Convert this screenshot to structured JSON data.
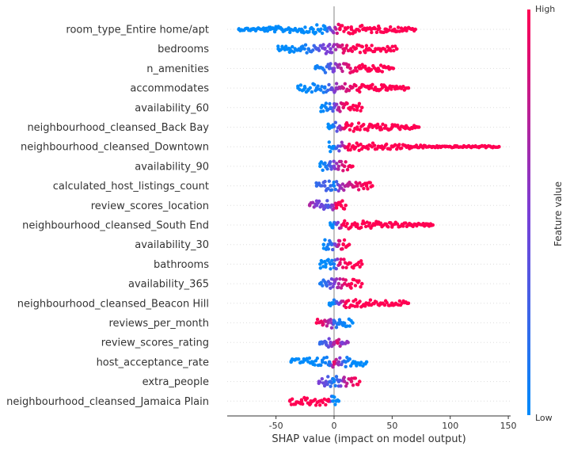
{
  "chart_data": {
    "type": "scatter",
    "subtype": "shap-beeswarm",
    "xlabel": "SHAP value (impact on model output)",
    "xlim": [
      -92,
      152
    ],
    "xticks": [
      -50,
      0,
      50,
      100,
      150
    ],
    "colorbar": {
      "title": "Feature value",
      "high_label": "High",
      "low_label": "Low",
      "low_color": "#008bfb",
      "high_color": "#ff0052"
    },
    "zero_line_color": "#999999",
    "features": [
      {
        "name": "room_type_Entire home/apt",
        "min": -82,
        "max": 70,
        "points": [
          {
            "x": -82,
            "c": 0.0
          },
          {
            "x": -70,
            "c": 0.0
          },
          {
            "x": -62,
            "c": 0.0
          },
          {
            "x": -55,
            "c": 0.0
          },
          {
            "x": -50,
            "c": 0.0
          },
          {
            "x": -45,
            "c": 0.0
          },
          {
            "x": -38,
            "c": 0.0
          },
          {
            "x": -28,
            "c": 0.0
          },
          {
            "x": -18,
            "c": 0.0
          },
          {
            "x": -8,
            "c": 0.0
          },
          {
            "x": 5,
            "c": 1.0
          },
          {
            "x": 15,
            "c": 1.0
          },
          {
            "x": 25,
            "c": 1.0
          },
          {
            "x": 32,
            "c": 1.0
          },
          {
            "x": 38,
            "c": 1.0
          },
          {
            "x": 45,
            "c": 1.0
          },
          {
            "x": 52,
            "c": 1.0
          },
          {
            "x": 60,
            "c": 1.0
          },
          {
            "x": 70,
            "c": 1.0
          }
        ]
      },
      {
        "name": "bedrooms",
        "min": -48,
        "max": 54,
        "points": [
          {
            "x": -48,
            "c": 0.0
          },
          {
            "x": -38,
            "c": 0.0
          },
          {
            "x": -28,
            "c": 0.05
          },
          {
            "x": -22,
            "c": 0.1
          },
          {
            "x": -15,
            "c": 0.3
          },
          {
            "x": -8,
            "c": 0.5
          },
          {
            "x": -3,
            "c": 0.5
          },
          {
            "x": 8,
            "c": 0.9
          },
          {
            "x": 18,
            "c": 1.0
          },
          {
            "x": 28,
            "c": 1.0
          },
          {
            "x": 38,
            "c": 1.0
          },
          {
            "x": 48,
            "c": 1.0
          },
          {
            "x": 54,
            "c": 1.0
          }
        ]
      },
      {
        "name": "n_amenities",
        "min": -16,
        "max": 51,
        "points": [
          {
            "x": -16,
            "c": 0.05
          },
          {
            "x": -10,
            "c": 0.1
          },
          {
            "x": -4,
            "c": 0.3
          },
          {
            "x": 0,
            "c": 0.5
          },
          {
            "x": 6,
            "c": 0.75
          },
          {
            "x": 14,
            "c": 0.9
          },
          {
            "x": 22,
            "c": 1.0
          },
          {
            "x": 30,
            "c": 1.0
          },
          {
            "x": 38,
            "c": 1.0
          },
          {
            "x": 51,
            "c": 1.0
          }
        ]
      },
      {
        "name": "accommodates",
        "min": -31,
        "max": 64,
        "points": [
          {
            "x": -31,
            "c": 0.0
          },
          {
            "x": -25,
            "c": 0.0
          },
          {
            "x": -15,
            "c": 0.05
          },
          {
            "x": -8,
            "c": 0.1
          },
          {
            "x": -2,
            "c": 0.4
          },
          {
            "x": 2,
            "c": 0.6
          },
          {
            "x": 8,
            "c": 0.8
          },
          {
            "x": 15,
            "c": 0.9
          },
          {
            "x": 22,
            "c": 1.0
          },
          {
            "x": 30,
            "c": 1.0
          },
          {
            "x": 45,
            "c": 1.0
          },
          {
            "x": 57,
            "c": 1.0
          },
          {
            "x": 64,
            "c": 1.0
          }
        ]
      },
      {
        "name": "availability_60",
        "min": -11,
        "max": 24,
        "points": [
          {
            "x": -11,
            "c": 0.0
          },
          {
            "x": -7,
            "c": 0.05
          },
          {
            "x": -3,
            "c": 0.15
          },
          {
            "x": 0,
            "c": 0.4
          },
          {
            "x": 4,
            "c": 0.75
          },
          {
            "x": 8,
            "c": 0.9
          },
          {
            "x": 14,
            "c": 1.0
          },
          {
            "x": 20,
            "c": 1.0
          },
          {
            "x": 24,
            "c": 1.0
          }
        ]
      },
      {
        "name": "neighbourhood_cleansed_Back Bay",
        "min": -5,
        "max": 73,
        "points": [
          {
            "x": -5,
            "c": 0.0
          },
          {
            "x": -2,
            "c": 0.0
          },
          {
            "x": 10,
            "c": 1.0
          },
          {
            "x": 20,
            "c": 1.0
          },
          {
            "x": 30,
            "c": 1.0
          },
          {
            "x": 40,
            "c": 1.0
          },
          {
            "x": 50,
            "c": 1.0
          },
          {
            "x": 60,
            "c": 1.0
          },
          {
            "x": 73,
            "c": 1.0
          }
        ]
      },
      {
        "name": "neighbourhood_cleansed_Downtown",
        "min": -4,
        "max": 142,
        "points": [
          {
            "x": -4,
            "c": 0.0
          },
          {
            "x": -1,
            "c": 0.0
          },
          {
            "x": 12,
            "c": 1.0
          },
          {
            "x": 25,
            "c": 1.0
          },
          {
            "x": 40,
            "c": 1.0
          },
          {
            "x": 55,
            "c": 1.0
          },
          {
            "x": 70,
            "c": 1.0
          },
          {
            "x": 85,
            "c": 1.0
          },
          {
            "x": 105,
            "c": 1.0
          },
          {
            "x": 125,
            "c": 1.0
          },
          {
            "x": 142,
            "c": 1.0
          }
        ]
      },
      {
        "name": "availability_90",
        "min": -12,
        "max": 16,
        "points": [
          {
            "x": -12,
            "c": 0.0
          },
          {
            "x": -7,
            "c": 0.1
          },
          {
            "x": -3,
            "c": 0.3
          },
          {
            "x": 0,
            "c": 0.5
          },
          {
            "x": 4,
            "c": 0.7
          },
          {
            "x": 9,
            "c": 0.9
          },
          {
            "x": 16,
            "c": 1.0
          }
        ]
      },
      {
        "name": "calculated_host_listings_count",
        "min": -15,
        "max": 33,
        "points": [
          {
            "x": -15,
            "c": 0.2
          },
          {
            "x": -8,
            "c": 0.3
          },
          {
            "x": -3,
            "c": 0.2
          },
          {
            "x": 0,
            "c": 0.05
          },
          {
            "x": 5,
            "c": 0.6
          },
          {
            "x": 12,
            "c": 0.75
          },
          {
            "x": 20,
            "c": 0.9
          },
          {
            "x": 28,
            "c": 1.0
          },
          {
            "x": 33,
            "c": 1.0
          }
        ]
      },
      {
        "name": "review_scores_location",
        "min": -21,
        "max": 10,
        "points": [
          {
            "x": -21,
            "c": 0.7
          },
          {
            "x": -15,
            "c": 0.5
          },
          {
            "x": -10,
            "c": 0.45
          },
          {
            "x": -5,
            "c": 0.3
          },
          {
            "x": -1,
            "c": 0.6
          },
          {
            "x": 2,
            "c": 1.0
          },
          {
            "x": 6,
            "c": 1.0
          },
          {
            "x": 10,
            "c": 1.0
          }
        ]
      },
      {
        "name": "neighbourhood_cleansed_South End",
        "min": -3,
        "max": 85,
        "points": [
          {
            "x": -3,
            "c": 0.0
          },
          {
            "x": -1,
            "c": 0.0
          },
          {
            "x": 8,
            "c": 1.0
          },
          {
            "x": 20,
            "c": 1.0
          },
          {
            "x": 35,
            "c": 1.0
          },
          {
            "x": 50,
            "c": 1.0
          },
          {
            "x": 65,
            "c": 1.0
          },
          {
            "x": 80,
            "c": 1.0
          },
          {
            "x": 85,
            "c": 1.0
          }
        ]
      },
      {
        "name": "availability_30",
        "min": -9,
        "max": 13,
        "points": [
          {
            "x": -9,
            "c": 0.0
          },
          {
            "x": -5,
            "c": 0.1
          },
          {
            "x": -2,
            "c": 0.2
          },
          {
            "x": 1,
            "c": 0.5
          },
          {
            "x": 4,
            "c": 0.8
          },
          {
            "x": 8,
            "c": 1.0
          },
          {
            "x": 13,
            "c": 1.0
          }
        ]
      },
      {
        "name": "bathrooms",
        "min": -12,
        "max": 24,
        "points": [
          {
            "x": -12,
            "c": 0.0
          },
          {
            "x": -7,
            "c": 0.0
          },
          {
            "x": -3,
            "c": 0.05
          },
          {
            "x": 0,
            "c": 0.1
          },
          {
            "x": 5,
            "c": 0.9
          },
          {
            "x": 12,
            "c": 1.0
          },
          {
            "x": 20,
            "c": 1.0
          },
          {
            "x": 24,
            "c": 1.0
          }
        ]
      },
      {
        "name": "availability_365",
        "min": -12,
        "max": 24,
        "points": [
          {
            "x": -12,
            "c": 0.1
          },
          {
            "x": -7,
            "c": 0.2
          },
          {
            "x": -3,
            "c": 0.4
          },
          {
            "x": 0,
            "c": 0.5
          },
          {
            "x": 4,
            "c": 0.7
          },
          {
            "x": 9,
            "c": 0.9
          },
          {
            "x": 15,
            "c": 1.0
          },
          {
            "x": 24,
            "c": 1.0
          }
        ]
      },
      {
        "name": "neighbourhood_cleansed_Beacon Hill",
        "min": -4,
        "max": 64,
        "points": [
          {
            "x": -4,
            "c": 0.0
          },
          {
            "x": -1,
            "c": 0.0
          },
          {
            "x": 10,
            "c": 1.0
          },
          {
            "x": 20,
            "c": 1.0
          },
          {
            "x": 30,
            "c": 1.0
          },
          {
            "x": 40,
            "c": 1.0
          },
          {
            "x": 50,
            "c": 1.0
          },
          {
            "x": 64,
            "c": 1.0
          }
        ]
      },
      {
        "name": "reviews_per_month",
        "min": -15,
        "max": 16,
        "points": [
          {
            "x": -15,
            "c": 1.0
          },
          {
            "x": -10,
            "c": 0.9
          },
          {
            "x": -5,
            "c": 0.7
          },
          {
            "x": -2,
            "c": 0.6
          },
          {
            "x": 0,
            "c": 0.2
          },
          {
            "x": 4,
            "c": 0.1
          },
          {
            "x": 8,
            "c": 0.05
          },
          {
            "x": 16,
            "c": 0.0
          }
        ]
      },
      {
        "name": "review_scores_rating",
        "min": -12,
        "max": 12,
        "points": [
          {
            "x": -12,
            "c": 0.2
          },
          {
            "x": -7,
            "c": 0.3
          },
          {
            "x": -3,
            "c": 0.5
          },
          {
            "x": 0,
            "c": 0.7
          },
          {
            "x": 3,
            "c": 0.9
          },
          {
            "x": 7,
            "c": 0.5
          },
          {
            "x": 12,
            "c": 0.6
          }
        ]
      },
      {
        "name": "host_acceptance_rate",
        "min": -37,
        "max": 28,
        "points": [
          {
            "x": -37,
            "c": 0.0
          },
          {
            "x": -28,
            "c": 0.0
          },
          {
            "x": -18,
            "c": 0.0
          },
          {
            "x": -10,
            "c": 0.05
          },
          {
            "x": -4,
            "c": 0.1
          },
          {
            "x": 0,
            "c": 0.9
          },
          {
            "x": 4,
            "c": 0.6
          },
          {
            "x": 10,
            "c": 0.1
          },
          {
            "x": 18,
            "c": 0.0
          },
          {
            "x": 28,
            "c": 0.0
          }
        ]
      },
      {
        "name": "extra_people",
        "min": -13,
        "max": 22,
        "points": [
          {
            "x": -13,
            "c": 0.5
          },
          {
            "x": -7,
            "c": 0.4
          },
          {
            "x": -3,
            "c": 0.2
          },
          {
            "x": 0,
            "c": 0.05
          },
          {
            "x": 4,
            "c": 0.3
          },
          {
            "x": 9,
            "c": 0.7
          },
          {
            "x": 15,
            "c": 0.9
          },
          {
            "x": 22,
            "c": 1.0
          }
        ]
      },
      {
        "name": "neighbourhood_cleansed_Jamaica Plain",
        "min": -38,
        "max": 4,
        "points": [
          {
            "x": -38,
            "c": 1.0
          },
          {
            "x": -28,
            "c": 1.0
          },
          {
            "x": -20,
            "c": 1.0
          },
          {
            "x": -12,
            "c": 1.0
          },
          {
            "x": -5,
            "c": 1.0
          },
          {
            "x": -1,
            "c": 0.0
          },
          {
            "x": 2,
            "c": 0.0
          },
          {
            "x": 4,
            "c": 0.0
          }
        ]
      }
    ]
  }
}
